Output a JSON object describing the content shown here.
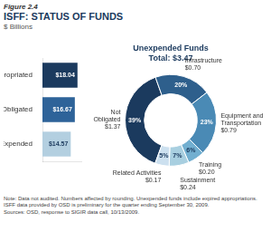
{
  "chart_data": [
    {
      "type": "bar",
      "title": "ISFF: STATUS OF FUNDS",
      "subtitle": "$ Billions",
      "annotations": [
        "Figure 2.4"
      ],
      "categories": [
        "Appropriated",
        "Obligated",
        "Expended"
      ],
      "values": [
        18.04,
        16.67,
        14.57
      ],
      "value_labels": [
        "$18.04",
        "$16.67",
        "$14.57"
      ],
      "colors": [
        "#1b3a5e",
        "#2e6399",
        "#b3cfe0"
      ],
      "orientation": "horizontal",
      "xlim": [
        0,
        20
      ],
      "tick_labels": "y",
      "data_labels": true,
      "grid": false
    },
    {
      "type": "doughnut",
      "title": "Unexpended Funds\nTotal: $3.47",
      "categories": [
        "Not Obligated",
        "Infrastructure",
        "Equipment and Transportation",
        "Training",
        "Sustainment",
        "Related Activities"
      ],
      "values": [
        39,
        20,
        23,
        6,
        7,
        5
      ],
      "value_labels": [
        "39%",
        "20%",
        "23%",
        "6%",
        "7%",
        "5%"
      ],
      "dollars": [
        1.37,
        0.7,
        0.79,
        0.2,
        0.24,
        0.17
      ],
      "dollar_labels": [
        "$1.37",
        "$0.70",
        "$0.79",
        "$0.20",
        "$0.24",
        "$0.17"
      ],
      "colors": [
        "#1b3a5e",
        "#2e5f8c",
        "#4a8ab5",
        "#72afd0",
        "#a8cfe0",
        "#cce0ef"
      ],
      "data_labels": true,
      "annotations": [
        "Note: Data not audited. Numbers affected by rounding. Unexpended funds include expired appropriations.\nISFF data provided by OSD is preliminary for the quarter ending September 30, 2009.",
        "Sources: OSD, response to SIGIR data call, 10/13/2009."
      ]
    }
  ]
}
